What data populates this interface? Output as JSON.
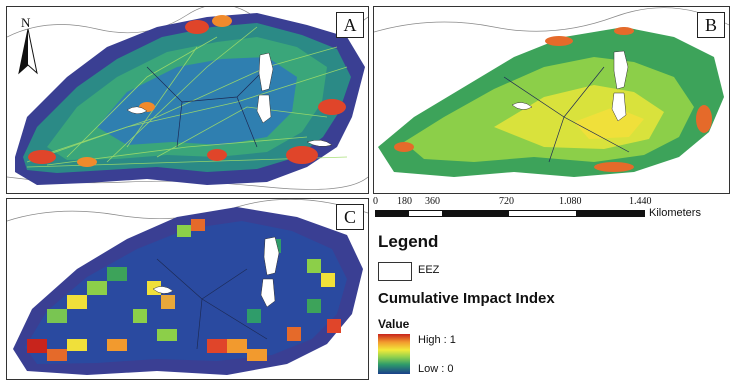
{
  "panels": {
    "a": {
      "letter": "A"
    },
    "b": {
      "letter": "B"
    },
    "c": {
      "letter": "C"
    }
  },
  "north_arrow": {
    "label": "N"
  },
  "scale_bar": {
    "ticks": [
      "0",
      "180",
      "360",
      "720",
      "1.080",
      "1.440"
    ],
    "unit": "Kilometers"
  },
  "legend": {
    "title": "Legend",
    "eez_label": "EEZ",
    "impact_title": "Cumulative Impact Index",
    "value_label": "Value",
    "high_label": "High : 1",
    "low_label": "Low : 0"
  },
  "colors": {
    "sea_buffer": "#3a3f93",
    "land": "#ffffff",
    "high": "#c8241c",
    "mid_high": "#f29a2e",
    "mid": "#f2ea3a",
    "mid_low": "#8fcf4e",
    "low_mid": "#2f9c6a",
    "low": "#1a3f8a"
  }
}
